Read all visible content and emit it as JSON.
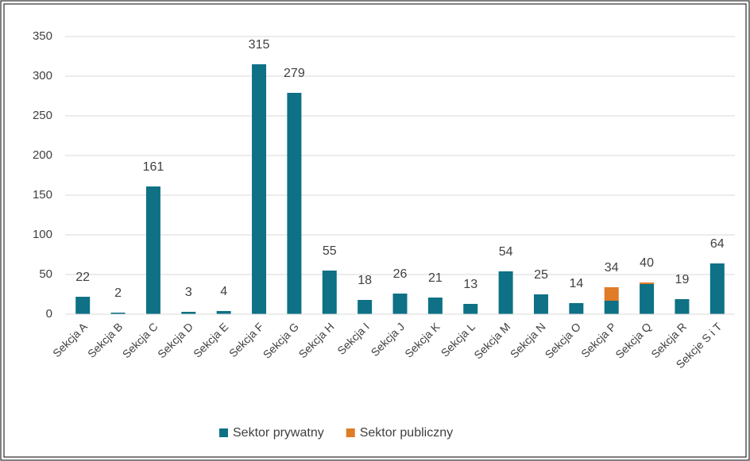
{
  "chart_data": {
    "type": "stacked_bar",
    "categories": [
      "Sekcja A",
      "Sekcja B",
      "Sekcja C",
      "Sekcja D",
      "Sekcja E",
      "Sekcja F",
      "Sekcja G",
      "Sekcja H",
      "Sekcja I",
      "Sekcja J",
      "Sekcja K",
      "Sekcja L",
      "Sekcja M",
      "Sekcja N",
      "Sekcja O",
      "Sekcja P",
      "Sekcja Q",
      "Sekcja R",
      "Sekcje S i T"
    ],
    "series": [
      {
        "name": "Sektor prywatny",
        "color": "#0e7185",
        "values": [
          22,
          2,
          161,
          3,
          4,
          315,
          279,
          55,
          18,
          26,
          21,
          13,
          54,
          25,
          14,
          17,
          38,
          19,
          64
        ]
      },
      {
        "name": "Sektor publiczny",
        "color": "#e07b28",
        "values": [
          0,
          0,
          0,
          0,
          0,
          0,
          0,
          0,
          0,
          0,
          0,
          0,
          0,
          0,
          0,
          17,
          2,
          0,
          0
        ]
      }
    ],
    "totals": [
      22,
      2,
      161,
      3,
      4,
      315,
      279,
      55,
      18,
      26,
      21,
      13,
      54,
      25,
      14,
      34,
      40,
      19,
      64
    ],
    "ylim": [
      0,
      350
    ],
    "yticks": [
      0,
      50,
      100,
      150,
      200,
      250,
      300,
      350
    ],
    "grid": true,
    "legend": "bottom"
  }
}
